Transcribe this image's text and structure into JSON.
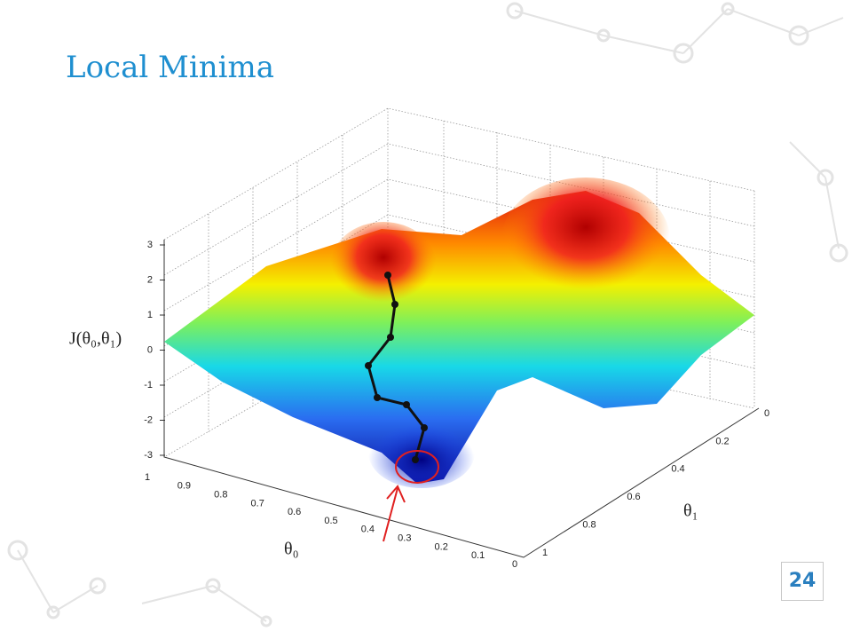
{
  "slide": {
    "title": "Local Minima",
    "page_number": "24"
  },
  "figure": {
    "z_label": "J(θ₀,θ₁)",
    "x_label": "θ₀",
    "y_label": "θ₁",
    "z_ticks": [
      3,
      2,
      1,
      0,
      -1,
      -2,
      -3
    ],
    "x_ticks": [
      1,
      0.9,
      0.8,
      0.7,
      0.6,
      0.5,
      0.4,
      0.3,
      0.2,
      0.1,
      0
    ],
    "y_ticks": [
      0,
      0.2,
      0.4,
      0.6,
      0.8,
      1
    ]
  }
}
